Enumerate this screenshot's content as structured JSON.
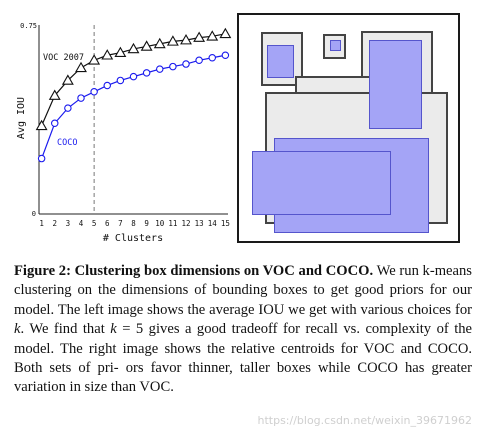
{
  "chart_data": {
    "type": "line",
    "x": [
      1,
      2,
      3,
      4,
      5,
      6,
      7,
      8,
      9,
      10,
      11,
      12,
      13,
      14,
      15
    ],
    "xlabel": "# Clusters",
    "ylabel": "Avg IOU",
    "ylim": [
      0,
      0.75
    ],
    "ytick_labels": [
      "0",
      "0.75"
    ],
    "xtick_labels": [
      "1",
      "2",
      "3",
      "4",
      "5",
      "6",
      "7",
      "8",
      "9",
      "10",
      "11",
      "12",
      "13",
      "14",
      "15"
    ],
    "vertical_line_x": 5,
    "series": [
      {
        "name": "VOC 2007",
        "marker": "triangle",
        "color": "#111111",
        "values": [
          0.35,
          0.47,
          0.53,
          0.58,
          0.61,
          0.63,
          0.64,
          0.655,
          0.665,
          0.675,
          0.685,
          0.69,
          0.7,
          0.705,
          0.715
        ]
      },
      {
        "name": "COCO",
        "marker": "circle",
        "color": "#1a1aee",
        "values": [
          0.22,
          0.36,
          0.42,
          0.46,
          0.485,
          0.51,
          0.53,
          0.545,
          0.56,
          0.575,
          0.585,
          0.595,
          0.61,
          0.62,
          0.63
        ]
      }
    ]
  },
  "caption": {
    "label": "Figure 2:",
    "title": "Clustering box dimensions on VOC and COCO.",
    "line1_tail": "We",
    "line2": "run k-means clustering on the dimensions of bounding boxes to get",
    "line3": "good priors for our model. The left image shows the average IOU",
    "line4a": "we get with various choices for",
    "k1": "k",
    "line4b": ". We find that",
    "k2": "k",
    "line4c": "= 5 gives a good",
    "line5": "tradeoff for recall vs. complexity of the model. The right image",
    "line6": "shows the relative centroids for VOC and COCO. Both sets of pri-",
    "line7": "ors favor thinner, taller boxes while COCO has greater variation in",
    "line8": "size than VOC."
  },
  "watermark": "https://blog.csdn.net/weixin_39671962",
  "colors": {
    "voc": "#444444",
    "coco": "#a4a4f6",
    "coco_line": "#1a1aee"
  }
}
